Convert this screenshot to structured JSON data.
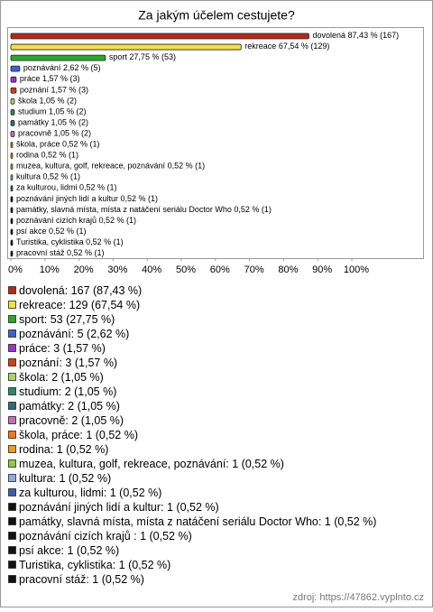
{
  "chart_data": {
    "type": "bar",
    "orientation": "horizontal",
    "title": "Za jakým účelem cestujete?",
    "categories": [
      "dovolená",
      "rekreace",
      "sport",
      "poznávání",
      "práce",
      "poznání",
      "škola",
      "studium",
      "památky",
      "pracovně",
      "škola, práce",
      "rodina",
      "muzea, kultura, golf, rekreace, poznávání",
      "kultura",
      "za kulturou, lidmi",
      "poznávání jiných lidí a kultur",
      "památky, slavná místa, místa z natáčení seriálu Doctor Who",
      "poznávání cizích krajů ",
      "psí akce",
      "Turistika, cyklistika",
      "pracovní stáž"
    ],
    "values": [
      87.43,
      67.54,
      27.75,
      2.62,
      1.57,
      1.57,
      1.05,
      1.05,
      1.05,
      1.05,
      0.52,
      0.52,
      0.52,
      0.52,
      0.52,
      0.52,
      0.52,
      0.52,
      0.52,
      0.52,
      0.52
    ],
    "value_labels": [
      "87,43 % (167)",
      "67,54 % (129)",
      "27,75 % (53)",
      "2,62 % (5)",
      "1,57 % (3)",
      "1,57 % (3)",
      "1,05 % (2)",
      "1,05 % (2)",
      "1,05 % (2)",
      "1,05 % (2)",
      "0,52 % (1)",
      "0,52 % (1)",
      "0,52 % (1)",
      "0,52 % (1)",
      "0,52 % (1)",
      "0,52 % (1)",
      "0,52 % (1)",
      "0,52 % (1)",
      "0,52 % (1)",
      "0,52 % (1)",
      "0,52 % (1)"
    ],
    "legend_labels": [
      "dovolená: 167 (87,43 %)",
      "rekreace: 129 (67,54 %)",
      "sport: 53 (27,75 %)",
      "poznávání: 5 (2,62 %)",
      "práce: 3 (1,57 %)",
      "poznání: 3 (1,57 %)",
      "škola: 2 (1,05 %)",
      "studium: 2 (1,05 %)",
      "památky: 2 (1,05 %)",
      "pracovně: 2 (1,05 %)",
      "škola, práce: 1 (0,52 %)",
      "rodina: 1 (0,52 %)",
      "muzea, kultura, golf, rekreace, poznávání: 1 (0,52 %)",
      "kultura: 1 (0,52 %)",
      "za kulturou, lidmi: 1 (0,52 %)",
      "poznávání jiných lidí a kultur: 1 (0,52 %)",
      "památky, slavná místa, místa z natáčení seriálu Doctor Who: 1 (0,52 %)",
      "poznávání cizích krajů : 1 (0,52 %)",
      "psí akce: 1 (0,52 %)",
      "Turistika, cyklistika: 1 (0,52 %)",
      "pracovní stáž: 1 (0,52 %)"
    ],
    "colors": [
      "#b22a1c",
      "#f2e04a",
      "#2ea62e",
      "#3a64cc",
      "#9a34c8",
      "#d04016",
      "#a6d46a",
      "#2e8a5a",
      "#2e6a78",
      "#c270b4",
      "#ee7a22",
      "#ee9a1e",
      "#8ccc3e",
      "#8aaee0",
      "#3c5ea8",
      "#111111",
      "#111111",
      "#111111",
      "#111111",
      "#111111",
      "#111111"
    ],
    "xlim": [
      0,
      100
    ],
    "xticks": [
      {
        "value": 0,
        "label": "0%"
      },
      {
        "value": 10,
        "label": "10%"
      },
      {
        "value": 20,
        "label": "20%"
      },
      {
        "value": 30,
        "label": "30%"
      },
      {
        "value": 40,
        "label": "40%"
      },
      {
        "value": 50,
        "label": "50%"
      },
      {
        "value": 60,
        "label": "60%"
      },
      {
        "value": 70,
        "label": "70%"
      },
      {
        "value": 80,
        "label": "80%"
      },
      {
        "value": 90,
        "label": "90%"
      },
      {
        "value": 100,
        "label": "100%"
      }
    ],
    "source": "zdroj: https://47862.vyplnto.cz"
  }
}
